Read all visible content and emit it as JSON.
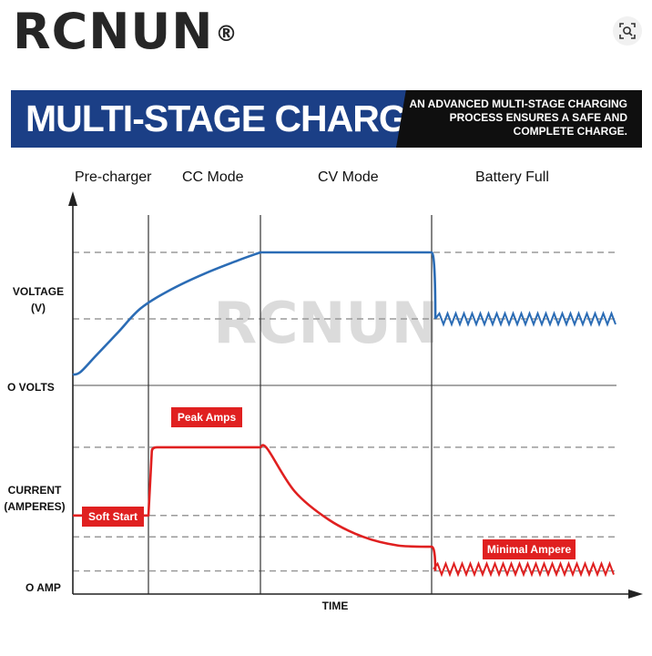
{
  "header": {
    "brand": "RCNUN",
    "brand_mark": "®",
    "lens_icon": "image-search-icon"
  },
  "banner": {
    "title": "MULTI-STAGE CHARGE",
    "subtitle": "AN ADVANCED MULTI-STAGE CHARGING\nPROCESS ENSURES A SAFE AND\nCOMPLETE CHARGE."
  },
  "watermark": "RCNUN",
  "colors": {
    "voltage_line": "#2b6cb5",
    "current_line": "#e02020",
    "banner_bg": "#1b3f86",
    "banner_dark": "#0f0f0f",
    "grid_dashed": "#9a9a9a"
  },
  "chart_data": {
    "type": "line",
    "stages": [
      "Pre-charger",
      "CC Mode",
      "CV Mode",
      "Battery Full"
    ],
    "xlabel": "TIME",
    "voltage_ylabel": [
      "VOLTAGE",
      "(V)"
    ],
    "voltage_zero_label": "O VOLTS",
    "current_ylabel": [
      "CURRENT",
      "(AMPERES)"
    ],
    "current_zero_label": "O AMP",
    "x_range": [
      0,
      4
    ],
    "voltage_range": [
      0,
      1
    ],
    "current_range": [
      0,
      1
    ],
    "series": [
      {
        "id": "voltage",
        "x": [
          0,
          0.1,
          0.3,
          0.6,
          0.9,
          1.2,
          1.5,
          1.8,
          2.0,
          2.5,
          3.0,
          3.02
        ],
        "y": [
          0.08,
          0.1,
          0.22,
          0.4,
          0.58,
          0.72,
          0.84,
          0.94,
          1.0,
          1.0,
          1.0,
          0.5
        ],
        "maintain_level": 0.5
      },
      {
        "id": "current",
        "x": [
          0,
          1,
          1.03,
          1.06,
          2,
          2.04,
          2.2,
          2.4,
          2.6,
          2.8,
          3.0,
          3.02
        ],
        "y": [
          0.45,
          0.45,
          0.9,
          0.93,
          0.93,
          0.92,
          0.62,
          0.42,
          0.3,
          0.24,
          0.23,
          0.06
        ],
        "maintain_level": 0.06
      }
    ],
    "annotations": [
      "Soft Start",
      "Peak Amps",
      "Minimal Ampere"
    ],
    "grid": "dashed"
  }
}
